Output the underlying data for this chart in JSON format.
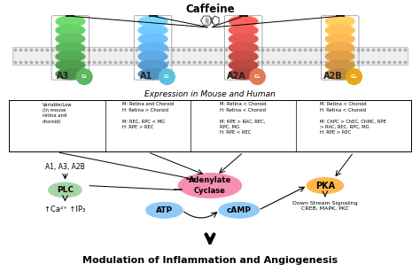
{
  "title": "Caffeine",
  "bg_color": "#ffffff",
  "receptor_colors": [
    "#5cb85c",
    "#64b5f6",
    "#d9534f",
    "#f0ad4e"
  ],
  "receptor_labels": [
    "A3",
    "A1",
    "A2A",
    "A2B"
  ],
  "gi_colors": [
    "#5cb85c",
    "#5bc0de",
    "#e07b54",
    "#e6a817"
  ],
  "gi_labels": [
    "Gᵢ",
    "Gᵢ",
    "Gₛ",
    "Gₛ"
  ],
  "expression_label": "Expression in Mouse and Human",
  "col_texts": [
    "Variable/Low\n(in mouse\nretina and\nchoroid)",
    "M: Retina and Choroid\nH: Retina > Choroid\n\nM: REC, RPC < MG\nH: RPE > REC",
    "M: Retina < Choroid\nH: Retina < Choroid\n\nM: RPE > RAC, REC,\nRPC, MG\nH: RPE < REC",
    "M: Retina < Choroid\nH: Retina < Choroid\n\nM: ChPC > ChEC, ChMC, RPE\n> RAC, REC, RPC, MG\nH: RPE > REC"
  ],
  "bottom_title": "Modulation of Inflammation and Angiogenesis",
  "plc_color": "#a5d6a7",
  "plc_label": "PLC",
  "adenylate_color": "#f48fb1",
  "adenylate_label": "Adenylate\nCyclase",
  "atp_color": "#90caf9",
  "atp_label": "ATP",
  "camp_color": "#90caf9",
  "camp_label": "cAMP",
  "pka_color": "#ffb74d",
  "pka_label": "PKA",
  "a1a3a2b_label": "A1, A3, A2B",
  "ca_label": "↑Ca²⁺ ↑IP₃",
  "downstream_label": "Down Stream Signaling\nCREB, MAPK, PKC"
}
